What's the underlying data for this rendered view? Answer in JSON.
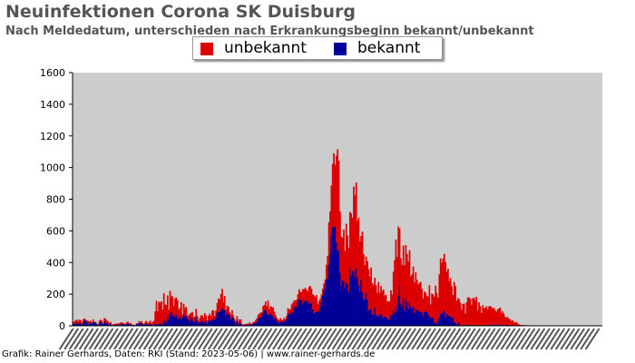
{
  "header": {
    "title": "Neuinfektionen Corona SK Duisburg",
    "subtitle": "Nach Meldedatum, unterschieden nach Erkrankungsbeginn bekannt/unbekannt"
  },
  "footer": {
    "credit": "Grafik: Rainer Gerhards, Daten: RKI (Stand: 2023-05-06) | www.rainer-gerhards.de"
  },
  "colors": {
    "unbekannt": "#dd0000",
    "bekannt": "#000099",
    "plot_background": "#cccccc"
  },
  "chart_data": {
    "type": "bar",
    "stacked": true,
    "title": "Neuinfektionen Corona SK Duisburg",
    "subtitle": "Nach Meldedatum, unterschieden nach Erkrankungsbeginn bekannt/unbekannt",
    "ylim": [
      0,
      1600
    ],
    "yticks": [
      0,
      200,
      400,
      600,
      800,
      1000,
      1200,
      1400,
      1600
    ],
    "grid": false,
    "legend_position": "top",
    "x_tick_labels": "dense date labels (illegible)",
    "series": [
      {
        "name": "unbekannt",
        "values": [
          14,
          18,
          22,
          22,
          16,
          21,
          18,
          17,
          24,
          10,
          9,
          6,
          21,
          15,
          12,
          8,
          17,
          5,
          4,
          2,
          6,
          15,
          16,
          13,
          6,
          20,
          24,
          18,
          15,
          13,
          8,
          4,
          7,
          8,
          7,
          5,
          11,
          10,
          12,
          11,
          7,
          4,
          6,
          11,
          9,
          3,
          11,
          5,
          3,
          1,
          1,
          4,
          4,
          11,
          6,
          15,
          9,
          4,
          12,
          18,
          12,
          15,
          20,
          8,
          18,
          27,
          80,
          148,
          82,
          141,
          137,
          141,
          93,
          168,
          103,
          113,
          135,
          53,
          143,
          101,
          121,
          58,
          121,
          106,
          111,
          56,
          54,
          108,
          17,
          65,
          51,
          55,
          22,
          27,
          50,
          30,
          44,
          33,
          32,
          51,
          30,
          16,
          26,
          40,
          38,
          30,
          59,
          34,
          23,
          35,
          43,
          34,
          55,
          53,
          22,
          45,
          64,
          86,
          78,
          102,
          120,
          45,
          91,
          37,
          44,
          49,
          18,
          33,
          47,
          16,
          16,
          16,
          22,
          16,
          23,
          26,
          5,
          4,
          6,
          5,
          6,
          6,
          9,
          7,
          8,
          9,
          11,
          16,
          24,
          29,
          23,
          31,
          19,
          44,
          34,
          51,
          45,
          89,
          37,
          47,
          53,
          53,
          45,
          21,
          20,
          16,
          20,
          23,
          18,
          13,
          20,
          17,
          21,
          31,
          31,
          32,
          49,
          65,
          46,
          36,
          49,
          50,
          64,
          53,
          47,
          97,
          71,
          86,
          70,
          63,
          105,
          105,
          96,
          95,
          116,
          99,
          108,
          44,
          63,
          49,
          47,
          43,
          47,
          51,
          99,
          141,
          272,
          272,
          319,
          402,
          467,
          390,
          548,
          636,
          569,
          386,
          307,
          269,
          327,
          234,
          371,
          311,
          281,
          349,
          392,
          337,
          533,
          515,
          540,
          364,
          427,
          316,
          277,
          382,
          286,
          216,
          231,
          244,
          260,
          210,
          261,
          196,
          185,
          186,
          186,
          149,
          208,
          152,
          175,
          158,
          177,
          132,
          137,
          109,
          111,
          118,
          158,
          128,
          239,
          339,
          417,
          338,
          436,
          359,
          287,
          267,
          331,
          284,
          340,
          304,
          296,
          331,
          188,
          216,
          254,
          191,
          232,
          190,
          168,
          180,
          189,
          148,
          113,
          130,
          111,
          103,
          111,
          195,
          85,
          151,
          146,
          159,
          235,
          193,
          136,
          273,
          346,
          327,
          341,
          355,
          350,
          265,
          291,
          219,
          244,
          201,
          140,
          252,
          231,
          150,
          163,
          145,
          144,
          100,
          132,
          136,
          72,
          145,
          172,
          175,
          168,
          131,
          172,
          171,
          157,
          181,
          94,
          146,
          122,
          77,
          127,
          110,
          107,
          122,
          96,
          119,
          121,
          110,
          103,
          107,
          98,
          80,
          101,
          105,
          107,
          77,
          87,
          72,
          55,
          47,
          49,
          42,
          40,
          29,
          34,
          19,
          24,
          21,
          15,
          8,
          5,
          4,
          4,
          3,
          3,
          2,
          2,
          2,
          1,
          1,
          1,
          1,
          1,
          1,
          1,
          1,
          1,
          1,
          1,
          1,
          1,
          1,
          1,
          1,
          1,
          1,
          1,
          1,
          1,
          1,
          1,
          1,
          1,
          1,
          1,
          1,
          1,
          1,
          1,
          1,
          1,
          1,
          1,
          1,
          1,
          1,
          1,
          1,
          1,
          1,
          1,
          1,
          1,
          1,
          1,
          1,
          1,
          1,
          1,
          1,
          1,
          1,
          1,
          1,
          1,
          1,
          1
        ]
      },
      {
        "name": "bekannt",
        "values": [
          11,
          11,
          13,
          17,
          13,
          18,
          16,
          7,
          18,
          36,
          30,
          27,
          10,
          14,
          20,
          14,
          24,
          21,
          20,
          11,
          4,
          18,
          23,
          20,
          8,
          29,
          19,
          17,
          13,
          3,
          16,
          3,
          3,
          4,
          5,
          10,
          3,
          5,
          9,
          9,
          13,
          10,
          6,
          11,
          17,
          11,
          8,
          6,
          3,
          6,
          2,
          12,
          10,
          19,
          15,
          15,
          8,
          7,
          13,
          13,
          6,
          7,
          13,
          7,
          7,
          4,
          12,
          10,
          9,
          12,
          9,
          14,
          9,
          37,
          31,
          19,
          57,
          48,
          78,
          86,
          65,
          70,
          53,
          73,
          50,
          44,
          59,
          42,
          52,
          74,
          61,
          65,
          43,
          39,
          27,
          52,
          43,
          23,
          26,
          56,
          32,
          15,
          24,
          27,
          28,
          23,
          21,
          32,
          12,
          29,
          34,
          27,
          41,
          45,
          39,
          51,
          80,
          87,
          88,
          99,
          113,
          105,
          98,
          67,
          84,
          72,
          68,
          39,
          52,
          51,
          28,
          14,
          39,
          11,
          19,
          14,
          7,
          3,
          5,
          6,
          8,
          3,
          12,
          7,
          6,
          14,
          14,
          21,
          24,
          40,
          55,
          52,
          66,
          81,
          98,
          102,
          79,
          71,
          70,
          77,
          67,
          62,
          45,
          49,
          32,
          25,
          16,
          26,
          20,
          25,
          31,
          25,
          43,
          81,
          70,
          74,
          87,
          81,
          115,
          125,
          116,
          149,
          167,
          163,
          166,
          135,
          160,
          154,
          158,
          154,
          140,
          147,
          139,
          104,
          77,
          84,
          86,
          92,
          93,
          123,
          150,
          190,
          220,
          243,
          287,
          301,
          383,
          452,
          568,
          622,
          623,
          628,
          527,
          479,
          474,
          337,
          256,
          288,
          281,
          239,
          274,
          261,
          213,
          371,
          318,
          345,
          347,
          310,
          365,
          301,
          257,
          218,
          291,
          213,
          167,
          167,
          206,
          166,
          97,
          102,
          107,
          74,
          71,
          118,
          71,
          60,
          69,
          56,
          76,
          61,
          52,
          59,
          59,
          47,
          40,
          39,
          66,
          69,
          102,
          77,
          128,
          98,
          191,
          256,
          140,
          117,
          176,
          97,
          169,
          150,
          110,
          146,
          125,
          110,
          121,
          82,
          106,
          101,
          94,
          91,
          88,
          85,
          60,
          86,
          98,
          86,
          73,
          61,
          51,
          53,
          52,
          25,
          19,
          15,
          41,
          52,
          80,
          71,
          84,
          100,
          53,
          78,
          70,
          63,
          58,
          49,
          55,
          25,
          20,
          9,
          12,
          24,
          2,
          2,
          6,
          4,
          6,
          4,
          8,
          4,
          4,
          2,
          2,
          6,
          3,
          2,
          4,
          2,
          1,
          4,
          3,
          2,
          5,
          1,
          8,
          3,
          4,
          9,
          6,
          7,
          1,
          9,
          3,
          3,
          8,
          5,
          4,
          4,
          2,
          3,
          8,
          2,
          3,
          2,
          2,
          1,
          1,
          1,
          1,
          1,
          1,
          1,
          1,
          1,
          1,
          1,
          1,
          1,
          1,
          1,
          1,
          1,
          1,
          1,
          1,
          1,
          1,
          1,
          1,
          1,
          1,
          1,
          1,
          1,
          1,
          1,
          1,
          1,
          1,
          1,
          1,
          1,
          1,
          1,
          1,
          1,
          1,
          1,
          1,
          1,
          1,
          1,
          1,
          1,
          1,
          1,
          1,
          1,
          1,
          1,
          1,
          1,
          1,
          1,
          1,
          1,
          1,
          1,
          1,
          1,
          1,
          1,
          1
        ]
      }
    ]
  }
}
